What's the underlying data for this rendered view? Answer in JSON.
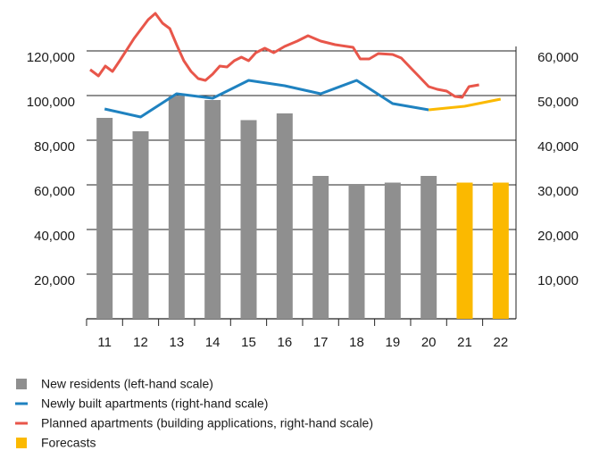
{
  "chart_data": {
    "type": "bar",
    "xlim": [
      10.5,
      22.5
    ],
    "xticks": [
      11,
      12,
      13,
      14,
      15,
      16,
      17,
      18,
      19,
      20,
      21,
      22
    ],
    "ylim": [
      0,
      140000
    ],
    "yticks": [
      {
        "value": 20000,
        "label": "20,000"
      },
      {
        "value": 40000,
        "label": "40,000"
      },
      {
        "value": 60000,
        "label": "60,000"
      },
      {
        "value": 80000,
        "label": "80,000"
      },
      {
        "value": 100000,
        "label": "100,000"
      },
      {
        "value": 120000,
        "label": "120,000"
      }
    ],
    "y2lim": [
      0,
      70000
    ],
    "y2ticks": [
      {
        "value": 10000,
        "label": "10,000"
      },
      {
        "value": 20000,
        "label": "20,000"
      },
      {
        "value": 30000,
        "label": "30,000"
      },
      {
        "value": 40000,
        "label": "40,000"
      },
      {
        "value": 50000,
        "label": "50,000"
      },
      {
        "value": 60000,
        "label": "60,000"
      }
    ],
    "grid": true,
    "series": [
      {
        "name": "New residents (left-hand scale)",
        "type": "bar",
        "color": "#8f8f8f",
        "x": [
          11,
          12,
          13,
          14,
          15,
          16,
          17,
          18,
          19,
          20
        ],
        "values": [
          90000,
          84000,
          100000,
          98000,
          89000,
          92000,
          64000,
          60000,
          61000,
          64000
        ]
      },
      {
        "name": "Newly built apartments (right-hand scale)",
        "type": "line",
        "axis": "y2",
        "color": "#1f82c0",
        "x": [
          11,
          12,
          13,
          14,
          15,
          16,
          17,
          18,
          19,
          20
        ],
        "values": [
          47000,
          45200,
          50400,
          49400,
          53400,
          52200,
          50400,
          53400,
          48200,
          46800
        ]
      },
      {
        "name": "Planned apartments (building applications, right-hand scale)",
        "type": "line",
        "axis": "y2",
        "color": "#e8564a",
        "x": [
          10.6,
          10.83,
          11.02,
          11.22,
          11.42,
          11.82,
          12.21,
          12.41,
          12.61,
          12.81,
          13.0,
          13.2,
          13.4,
          13.6,
          13.8,
          14.0,
          14.2,
          14.4,
          14.6,
          14.8,
          15.0,
          15.2,
          15.45,
          15.7,
          16.0,
          16.35,
          16.65,
          17.0,
          17.4,
          17.9,
          18.1,
          18.35,
          18.6,
          19.0,
          19.24,
          19.5,
          19.74,
          20.0,
          20.24,
          20.5,
          20.73,
          20.93,
          21.12,
          21.4
        ],
        "values": [
          55800,
          54400,
          56600,
          55400,
          57800,
          62800,
          67000,
          68400,
          66200,
          65000,
          61400,
          57800,
          55400,
          53800,
          53400,
          54800,
          56600,
          56400,
          57800,
          58600,
          57800,
          59600,
          60600,
          59600,
          61000,
          62200,
          63400,
          62200,
          61400,
          60800,
          58200,
          58200,
          59400,
          59200,
          58400,
          56200,
          54200,
          52000,
          51400,
          51000,
          49800,
          49600,
          52000,
          52400
        ]
      },
      {
        "name": "Forecasts",
        "type": "bar",
        "color": "#fbb900",
        "x": [
          21,
          22
        ],
        "values": [
          61000,
          61000
        ]
      },
      {
        "type": "line",
        "axis": "y2",
        "color": "#fbb900",
        "x": [
          20,
          21,
          22
        ],
        "values": [
          46800,
          47600,
          49200
        ]
      }
    ]
  }
}
